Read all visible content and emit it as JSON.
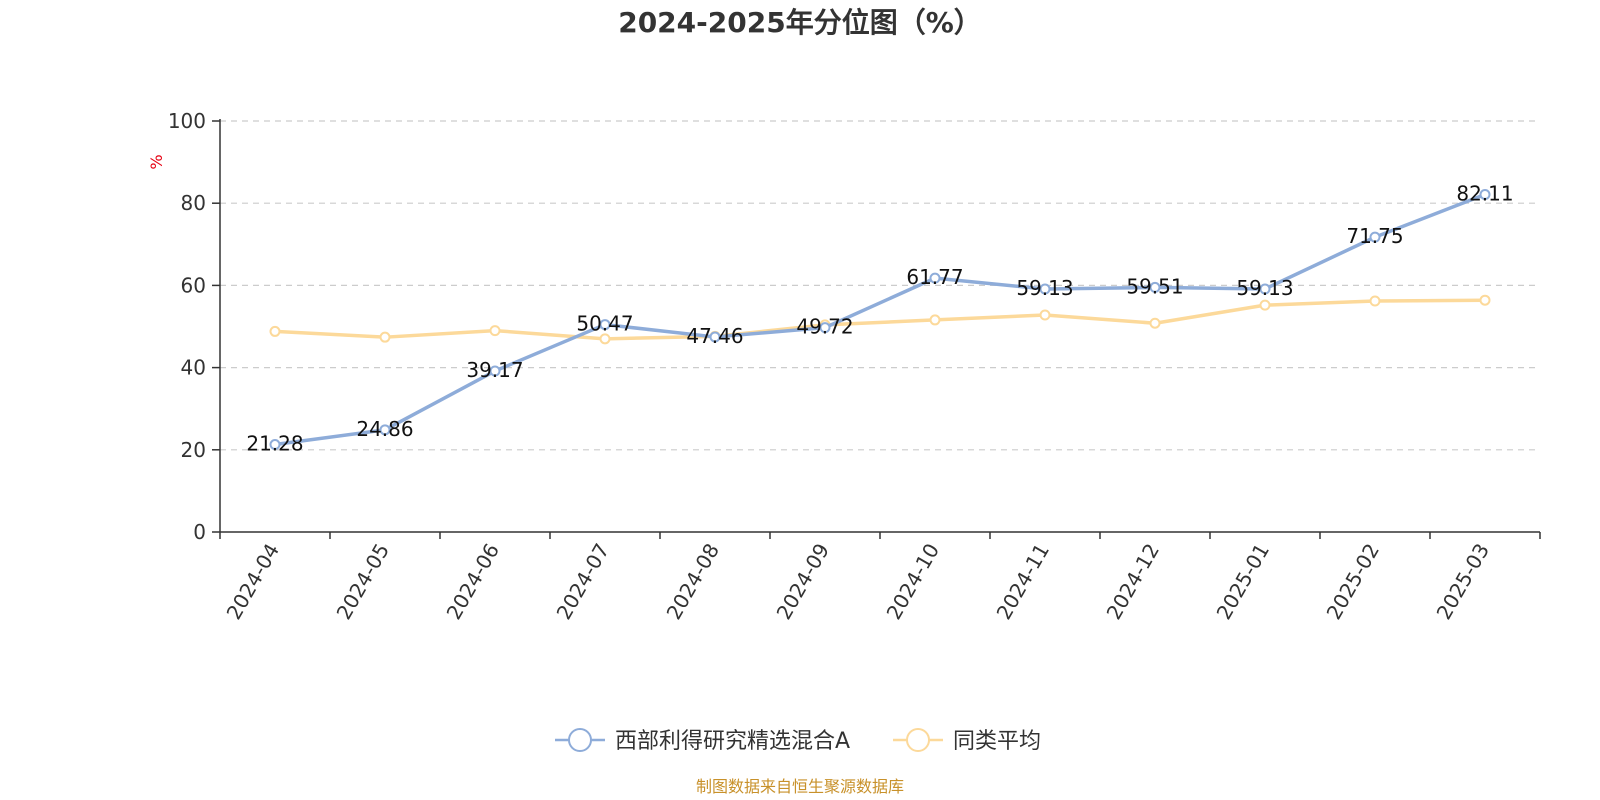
{
  "chart_data": {
    "type": "line",
    "title": "2024-2025年分位图（%）",
    "ylabel": "%",
    "ylim": [
      0,
      100
    ],
    "yticks": [
      0,
      20,
      40,
      60,
      80,
      100
    ],
    "grid": true,
    "legend_placement": "bottom-center",
    "categories": [
      "2024-04",
      "2024-05",
      "2024-06",
      "2024-07",
      "2024-08",
      "2024-09",
      "2024-10",
      "2024-11",
      "2024-12",
      "2025-01",
      "2025-02",
      "2025-03"
    ],
    "series": [
      {
        "name": "西部利得研究精选混合A",
        "color": "#8eacd9",
        "values": [
          21.28,
          24.86,
          39.17,
          50.47,
          47.46,
          49.72,
          61.77,
          59.13,
          59.51,
          59.13,
          71.75,
          82.11
        ],
        "labels": [
          "21.28",
          "24.86",
          "39.17",
          "50.47",
          "47.46",
          "49.72",
          "61.77",
          "59.13",
          "59.51",
          "59.13",
          "71.75",
          "82.11"
        ]
      },
      {
        "name": "同类平均",
        "color": "#fcd99a",
        "values": [
          48.8,
          47.4,
          49.0,
          47.0,
          47.6,
          50.4,
          51.6,
          52.8,
          50.8,
          55.2,
          56.2,
          56.4
        ]
      }
    ]
  },
  "footer": {
    "source": "制图数据来自恒生聚源数据库"
  }
}
